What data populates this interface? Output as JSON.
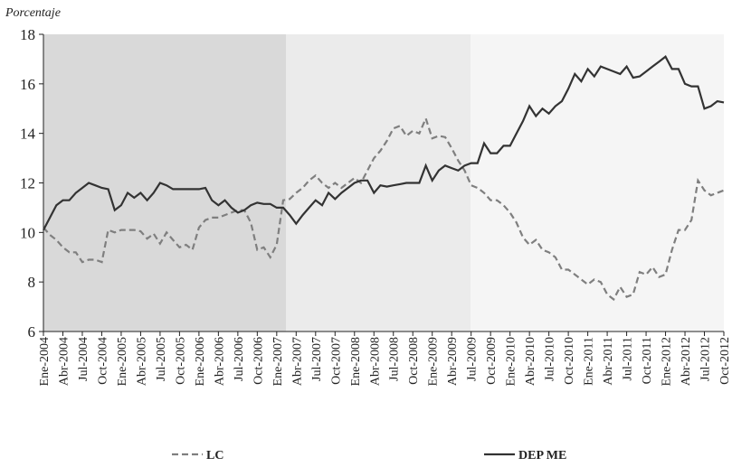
{
  "chart_data": {
    "type": "line",
    "y_label": "Porcentaje",
    "categories": [
      "Ene-2004",
      null,
      null,
      "Abr-2004",
      null,
      null,
      "Jul-2004",
      null,
      null,
      "Oct-2004",
      null,
      null,
      "Ene-2005",
      null,
      null,
      "Abr-2005",
      null,
      null,
      "Jul-2005",
      null,
      null,
      "Oct-2005",
      null,
      null,
      "Ene-2006",
      null,
      null,
      "Abr-2006",
      null,
      null,
      "Jul-2006",
      null,
      null,
      "Oct-2006",
      null,
      null,
      "Ene-2007",
      null,
      null,
      "Abr-2007",
      null,
      null,
      "Jul-2007",
      null,
      null,
      "Oct-2007",
      null,
      null,
      "Ene-2008",
      null,
      null,
      "Abr-2008",
      null,
      null,
      "Jul-2008",
      null,
      null,
      "Oct-2008",
      null,
      null,
      "Ene-2009",
      null,
      null,
      "Abr-2009",
      null,
      null,
      "Jul-2009",
      null,
      null,
      "Oct-2009",
      null,
      null,
      "Ene-2010",
      null,
      null,
      "Abr-2010",
      null,
      null,
      "Jul-2010",
      null,
      null,
      "Oct-2010",
      null,
      null,
      "Ene-2011",
      null,
      null,
      "Abr-2011",
      null,
      null,
      "Jul-2011",
      null,
      null,
      "Oct-2011",
      null,
      null,
      "Ene-2012",
      null,
      null,
      "Abr-2012",
      null,
      null,
      "Jul-2012",
      null,
      null,
      "Oct-2012"
    ],
    "series": [
      {
        "name": "LC",
        "color": "#7f7f7f",
        "dashed": true,
        "values": [
          10.2,
          9.9,
          9.7,
          9.4,
          9.2,
          9.2,
          8.8,
          8.9,
          8.9,
          8.8,
          10.1,
          10.0,
          10.1,
          10.1,
          10.1,
          10.05,
          9.75,
          9.95,
          9.55,
          10.0,
          9.7,
          9.4,
          9.5,
          9.3,
          10.2,
          10.5,
          10.6,
          10.6,
          10.7,
          10.8,
          10.9,
          10.9,
          10.4,
          9.3,
          9.4,
          9.0,
          9.5,
          11.3,
          11.35,
          11.6,
          11.8,
          12.1,
          12.3,
          12.0,
          11.8,
          12.0,
          11.8,
          12.0,
          12.2,
          12.0,
          12.5,
          13.0,
          13.3,
          13.7,
          14.2,
          14.3,
          13.9,
          14.1,
          14.0,
          14.6,
          13.8,
          13.9,
          13.85,
          13.4,
          12.9,
          12.5,
          11.9,
          11.8,
          11.6,
          11.3,
          11.3,
          11.1,
          10.8,
          10.4,
          9.8,
          9.5,
          9.7,
          9.3,
          9.2,
          9.0,
          8.5,
          8.5,
          8.3,
          8.1,
          7.9,
          8.1,
          8.0,
          7.5,
          7.3,
          7.8,
          7.4,
          7.5,
          8.4,
          8.3,
          8.6,
          8.2,
          8.3,
          9.3,
          10.1,
          10.1,
          10.5,
          12.1,
          11.7,
          11.5,
          11.6,
          11.7
        ]
      },
      {
        "name": "DEP ME",
        "color": "#333333",
        "dashed": false,
        "values": [
          10.1,
          10.6,
          11.1,
          11.3,
          11.3,
          11.6,
          11.8,
          12.0,
          11.9,
          11.8,
          11.75,
          10.9,
          11.1,
          11.6,
          11.4,
          11.6,
          11.3,
          11.6,
          12.0,
          11.9,
          11.75,
          11.75,
          11.75,
          11.75,
          11.75,
          11.8,
          11.3,
          11.1,
          11.3,
          11.0,
          10.8,
          10.9,
          11.1,
          11.2,
          11.15,
          11.15,
          11.0,
          11.0,
          10.7,
          10.35,
          10.7,
          11.0,
          11.3,
          11.1,
          11.6,
          11.35,
          11.6,
          11.8,
          12.0,
          12.1,
          12.1,
          11.6,
          11.9,
          11.85,
          11.9,
          11.95,
          12.0,
          12.0,
          12.0,
          12.7,
          12.1,
          12.5,
          12.7,
          12.6,
          12.5,
          12.7,
          12.8,
          12.8,
          13.6,
          13.2,
          13.2,
          13.5,
          13.5,
          14.0,
          14.5,
          15.1,
          14.7,
          15.0,
          14.8,
          15.1,
          15.3,
          15.8,
          16.4,
          16.1,
          16.6,
          16.3,
          16.7,
          16.6,
          16.5,
          16.4,
          16.7,
          16.25,
          16.3,
          16.5,
          16.7,
          16.9,
          17.1,
          16.6,
          16.6,
          16.0,
          15.9,
          15.9,
          15.0,
          15.1,
          15.3,
          15.25
        ]
      }
    ],
    "ylim": [
      6,
      18
    ],
    "yticks": [
      6,
      8,
      10,
      12,
      14,
      16,
      18
    ]
  }
}
